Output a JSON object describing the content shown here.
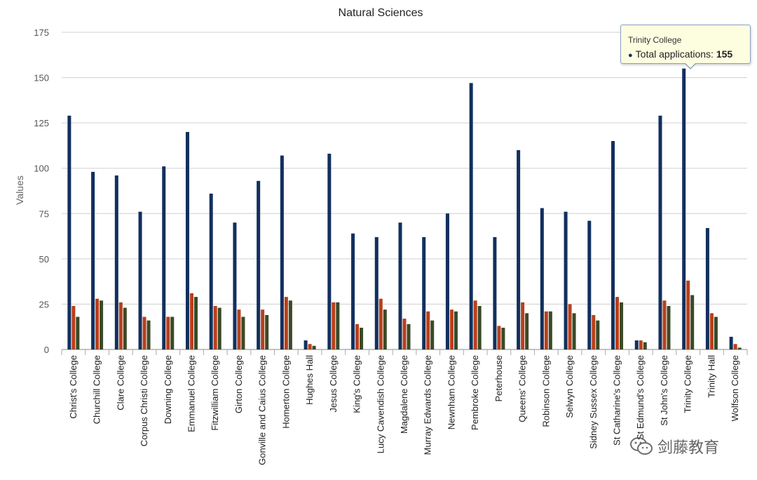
{
  "chart_data": {
    "type": "bar",
    "title": "Natural Sciences",
    "ylabel": "Values",
    "xlabel": "",
    "ylim": [
      0,
      175
    ],
    "yticks": [
      0,
      25,
      50,
      75,
      100,
      125,
      150,
      175
    ],
    "grid": true,
    "categories": [
      "Christ's College",
      "Churchill College",
      "Clare College",
      "Corpus Christi College",
      "Downing College",
      "Emmanuel College",
      "Fitzwilliam College",
      "Girton College",
      "Gonville and Caius College",
      "Homerton College",
      "Hughes Hall",
      "Jesus College",
      "King's College",
      "Lucy Cavendish College",
      "Magdalene College",
      "Murray Edwards College",
      "Newnham College",
      "Pembroke College",
      "Peterhouse",
      "Queens' College",
      "Robinson College",
      "Selwyn College",
      "Sidney Sussex College",
      "St Catharine's College",
      "St Edmund's College",
      "St John's College",
      "Trinity College",
      "Trinity Hall",
      "Wolfson College"
    ],
    "series": [
      {
        "name": "Total applications",
        "color": "#12305e",
        "values": [
          129,
          98,
          96,
          76,
          101,
          120,
          86,
          70,
          93,
          107,
          5,
          108,
          64,
          62,
          70,
          62,
          75,
          147,
          62,
          110,
          78,
          76,
          71,
          115,
          5,
          129,
          155,
          67,
          7
        ]
      },
      {
        "color": "#b8401c",
        "values": [
          24,
          28,
          26,
          18,
          18,
          31,
          24,
          22,
          22,
          29,
          3,
          26,
          14,
          28,
          17,
          21,
          22,
          27,
          13,
          26,
          21,
          25,
          19,
          29,
          5,
          27,
          38,
          20,
          3
        ]
      },
      {
        "color": "#3a4a28",
        "values": [
          18,
          27,
          23,
          16,
          18,
          29,
          23,
          18,
          19,
          27,
          2,
          26,
          12,
          22,
          14,
          16,
          21,
          24,
          12,
          20,
          21,
          20,
          16,
          26,
          4,
          24,
          30,
          18,
          1
        ]
      }
    ]
  },
  "tooltip": {
    "title": "Trinity College",
    "series_label": "Total applications:",
    "value": "155",
    "dot": "●"
  },
  "watermark": {
    "text": "剑藤教育",
    "icon": "wechat-icon"
  }
}
